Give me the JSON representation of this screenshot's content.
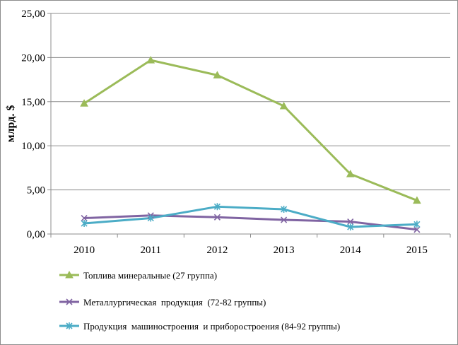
{
  "chart_data": {
    "type": "line",
    "title": "",
    "xlabel": "",
    "ylabel": "млрд. $",
    "categories": [
      "2010",
      "2011",
      "2012",
      "2013",
      "2014",
      "2015"
    ],
    "y_ticks": [
      "0,00",
      "5,00",
      "10,00",
      "15,00",
      "20,00",
      "25,00"
    ],
    "ylim": [
      0,
      25
    ],
    "grid": true,
    "legend_position": "bottom",
    "series": [
      {
        "name": "Топлива минеральные (27 группа)",
        "color": "#9bbb59",
        "marker": "triangle",
        "values": [
          14.8,
          19.7,
          18.0,
          14.5,
          6.8,
          3.8
        ]
      },
      {
        "name": "Металлургическая  продукция  (72-82 группы)",
        "color": "#8064a2",
        "marker": "x",
        "values": [
          1.8,
          2.1,
          1.9,
          1.6,
          1.4,
          0.5
        ]
      },
      {
        "name": "Продукция  машиностроения  и приборостроения (84-92 группы)",
        "color": "#4bacc6",
        "marker": "star",
        "values": [
          1.2,
          1.8,
          3.1,
          2.8,
          0.8,
          1.1
        ]
      }
    ]
  }
}
